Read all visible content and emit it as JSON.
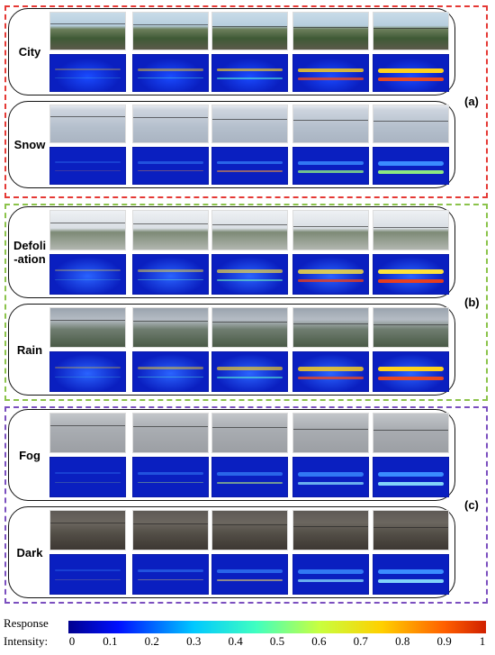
{
  "groups": [
    {
      "label": "(a)",
      "color": "#e53935",
      "rows": [
        {
          "label": "City",
          "theme": "city"
        },
        {
          "label": "Snow",
          "theme": "snow"
        }
      ]
    },
    {
      "label": "(b)",
      "color": "#8bc34a",
      "rows": [
        {
          "label": "Defoli\n-ation",
          "theme": "leaf"
        },
        {
          "label": "Rain",
          "theme": "rain"
        }
      ]
    },
    {
      "label": "(c)",
      "color": "#7b4fbf",
      "rows": [
        {
          "label": "Fog",
          "theme": "fog"
        },
        {
          "label": "Dark",
          "theme": "dark"
        }
      ]
    }
  ],
  "colorbar": {
    "title_line1": "Response",
    "title_line2": "Intensity:",
    "ticks": [
      "0",
      "0.1",
      "0.2",
      "0.3",
      "0.4",
      "0.5",
      "0.6",
      "0.7",
      "0.8",
      "0.9",
      "1"
    ]
  }
}
